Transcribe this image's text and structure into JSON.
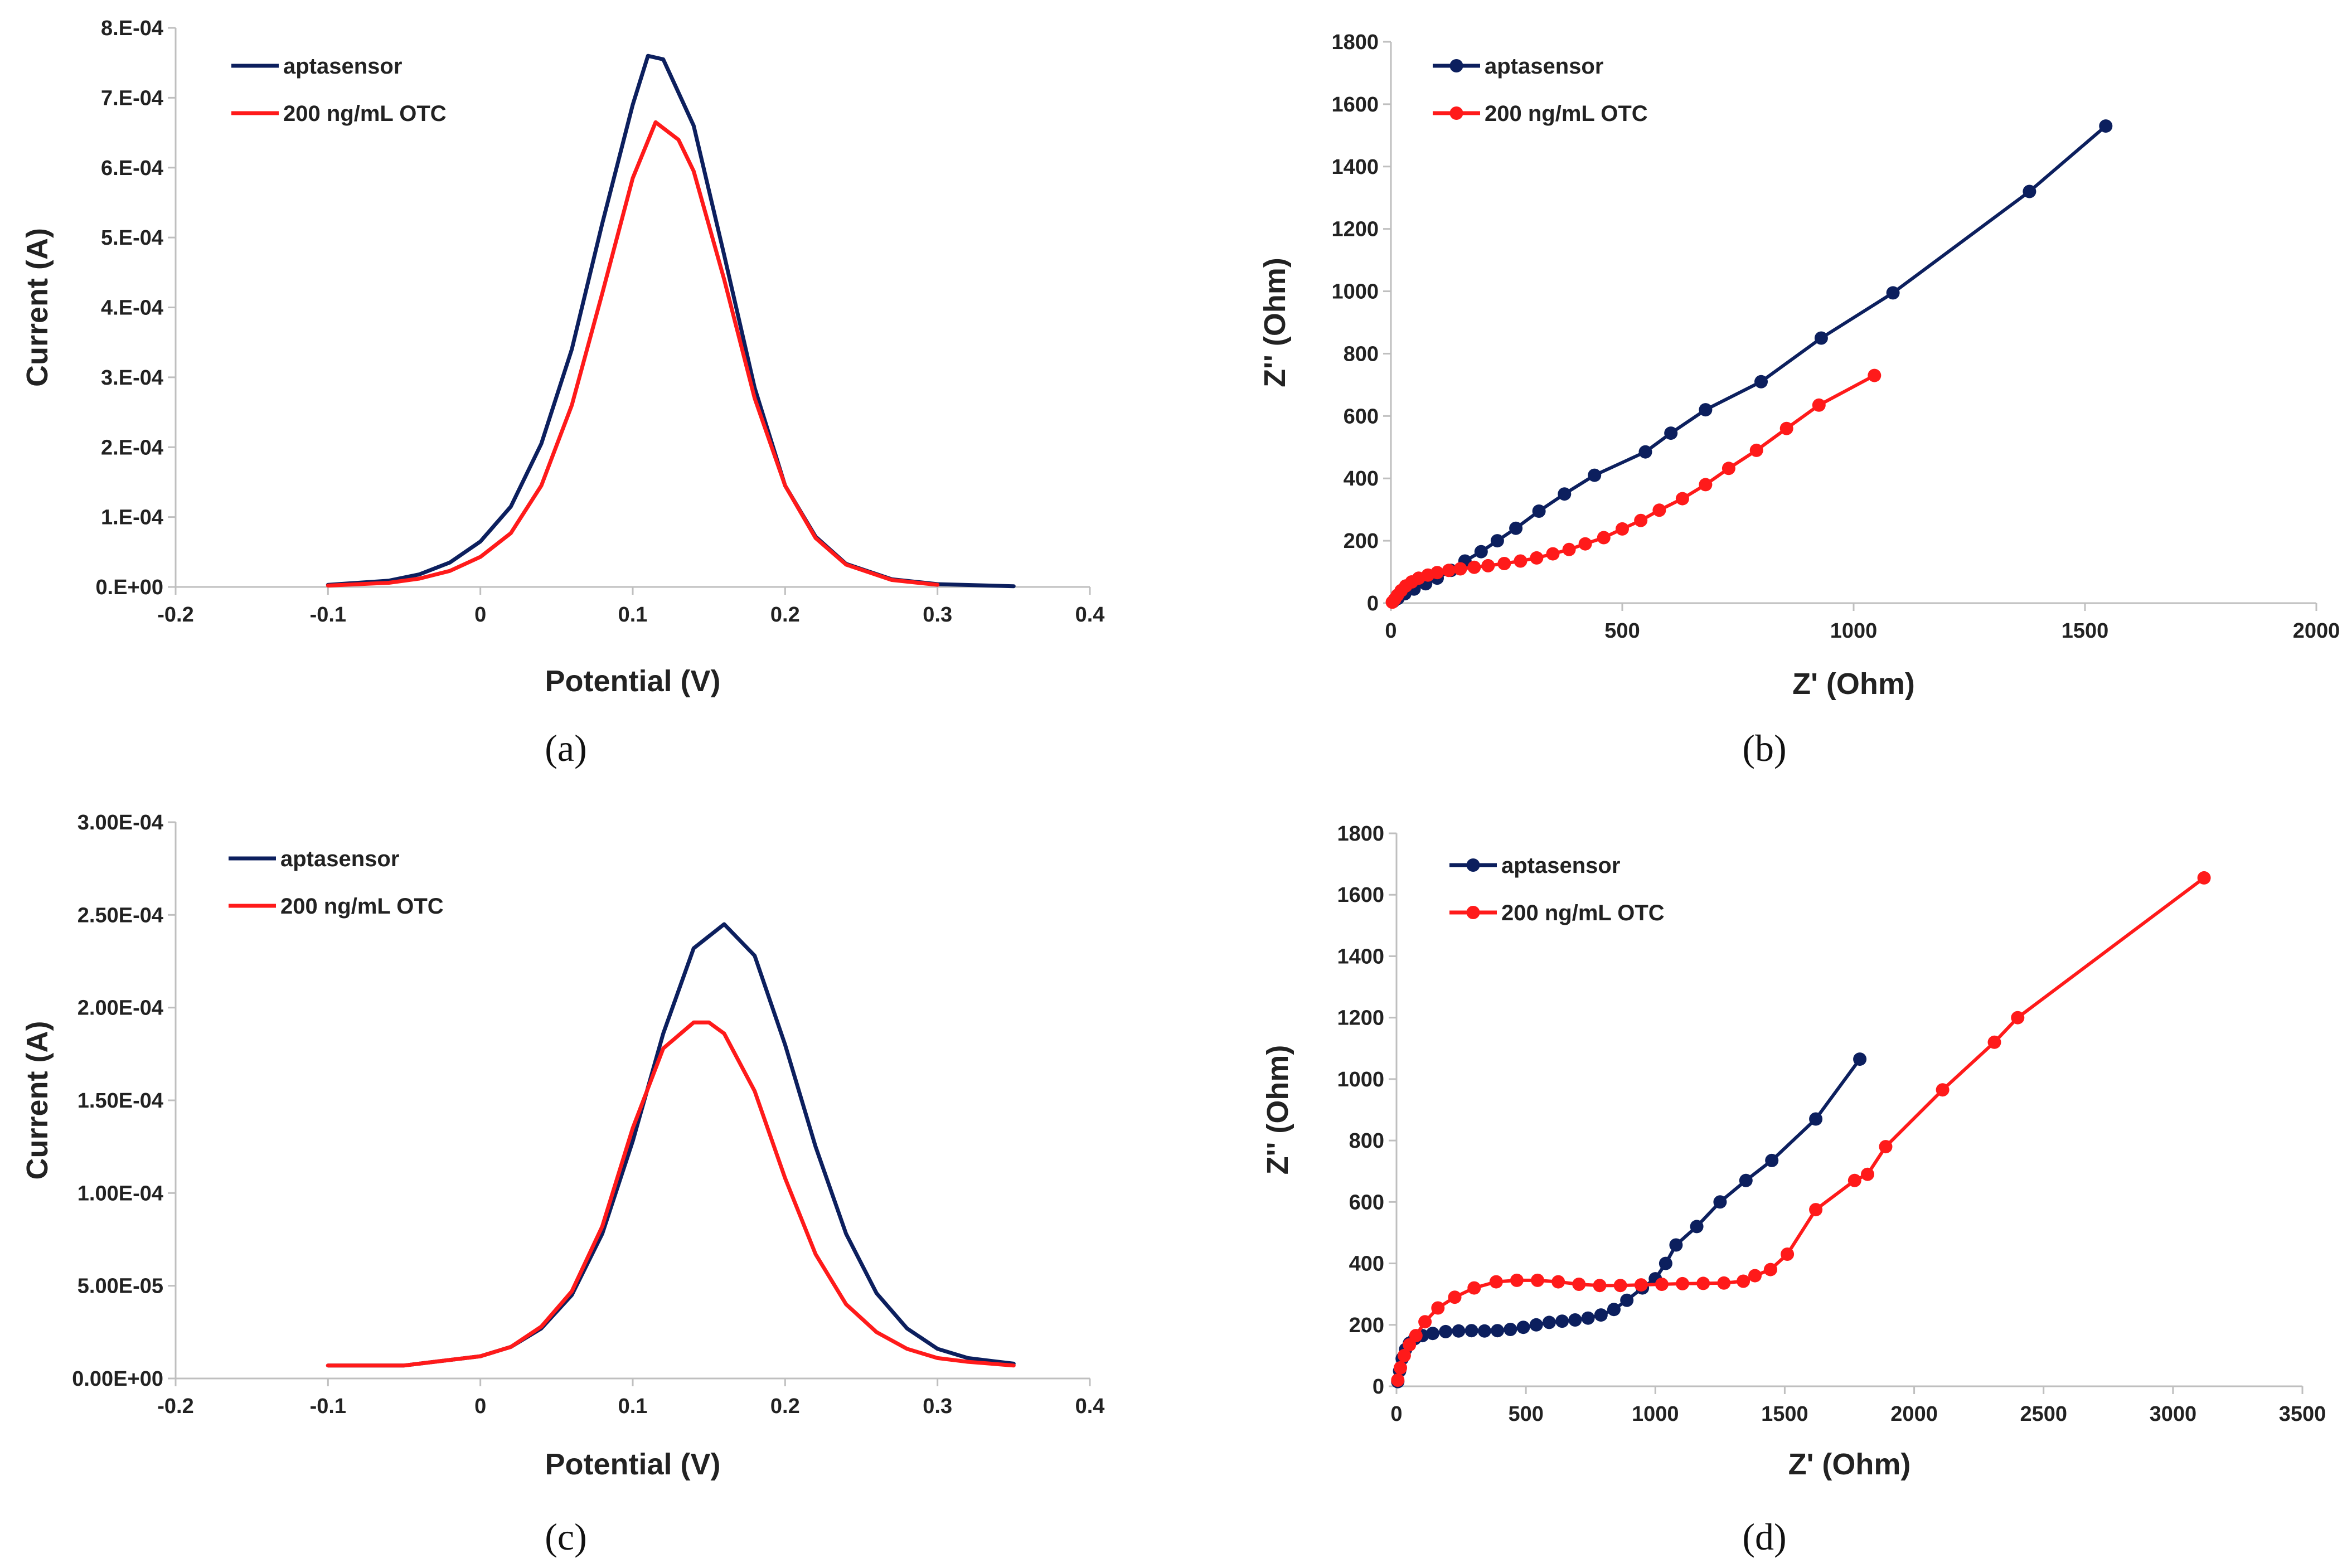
{
  "colors": {
    "series1": "#0c1f5e",
    "series2": "#ff1a1a"
  },
  "chart_data": [
    {
      "type": "line",
      "caption": "(a)",
      "xlabel": "Potential (V)",
      "ylabel": "Current (A)",
      "xlim": [
        -0.2,
        0.4
      ],
      "ylim": [
        0,
        0.0008
      ],
      "x_ticks": [
        -0.2,
        -0.1,
        0,
        0.1,
        0.2,
        0.3,
        0.4
      ],
      "x_tick_labels": [
        "-0.2",
        "-0.1",
        "0",
        "0.1",
        "0.2",
        "0.3",
        "0.4"
      ],
      "y_ticks": [
        0,
        0.0001,
        0.0002,
        0.0003,
        0.0004,
        0.0005,
        0.0006,
        0.0007,
        0.0008
      ],
      "y_tick_labels": [
        "0.E+00",
        "1.E-04",
        "2.E-04",
        "3.E-04",
        "4.E-04",
        "5.E-04",
        "6.E-04",
        "7.E-04",
        "8.E-04"
      ],
      "legend": [
        "aptasensor",
        "200 ng/mL OTC"
      ],
      "series": [
        {
          "name": "aptasensor",
          "markers": false,
          "x": [
            -0.1,
            -0.06,
            -0.04,
            -0.02,
            0,
            0.02,
            0.04,
            0.06,
            0.08,
            0.1,
            0.11,
            0.12,
            0.14,
            0.16,
            0.18,
            0.2,
            0.22,
            0.24,
            0.27,
            0.3,
            0.35
          ],
          "y": [
            3e-06,
            9e-06,
            1.8e-05,
            3.5e-05,
            6.5e-05,
            0.000115,
            0.000205,
            0.00034,
            0.00052,
            0.00069,
            0.00076,
            0.000755,
            0.00066,
            0.000475,
            0.000285,
            0.000145,
            7.2e-05,
            3.3e-05,
            1.1e-05,
            4e-06,
            1e-06
          ]
        },
        {
          "name": "200 ng/mL OTC",
          "markers": false,
          "x": [
            -0.1,
            -0.06,
            -0.04,
            -0.02,
            0,
            0.02,
            0.04,
            0.06,
            0.08,
            0.1,
            0.115,
            0.13,
            0.14,
            0.16,
            0.18,
            0.2,
            0.22,
            0.24,
            0.27,
            0.3
          ],
          "y": [
            2e-06,
            6e-06,
            1.2e-05,
            2.3e-05,
            4.3e-05,
            7.7e-05,
            0.000145,
            0.00026,
            0.00042,
            0.000585,
            0.000665,
            0.00064,
            0.000595,
            0.00044,
            0.00027,
            0.000145,
            7e-05,
            3.2e-05,
            1e-05,
            3e-06
          ]
        }
      ]
    },
    {
      "type": "scatter",
      "caption": "(b)",
      "xlabel": "Z' (Ohm)",
      "ylabel": "Z'' (Ohm)",
      "xlim": [
        0,
        2000
      ],
      "ylim": [
        0,
        1800
      ],
      "x_ticks": [
        0,
        500,
        1000,
        1500,
        2000
      ],
      "x_tick_labels": [
        "0",
        "500",
        "1000",
        "1500",
        "2000"
      ],
      "y_ticks": [
        0,
        200,
        400,
        600,
        800,
        1000,
        1200,
        1400,
        1600,
        1800
      ],
      "y_tick_labels": [
        "0",
        "200",
        "400",
        "600",
        "800",
        "1000",
        "1200",
        "1400",
        "1600",
        "1800"
      ],
      "legend": [
        "aptasensor",
        "200 ng/mL OTC"
      ],
      "series": [
        {
          "name": "aptasensor",
          "markers": true,
          "x": [
            5,
            15,
            30,
            50,
            75,
            100,
            130,
            160,
            195,
            230,
            270,
            320,
            375,
            440,
            550,
            605,
            680,
            800,
            930,
            1085,
            1380,
            1545
          ],
          "y": [
            5,
            15,
            30,
            45,
            62,
            80,
            105,
            135,
            165,
            200,
            240,
            295,
            350,
            410,
            485,
            545,
            620,
            710,
            850,
            995,
            1320,
            1530
          ]
        },
        {
          "name": "200 ng/mL OTC",
          "markers": true,
          "x": [
            3,
            8,
            14,
            22,
            32,
            45,
            60,
            80,
            100,
            125,
            150,
            180,
            210,
            245,
            280,
            315,
            350,
            385,
            420,
            460,
            500,
            540,
            580,
            630,
            680,
            730,
            790,
            855,
            925,
            1045
          ],
          "y": [
            3,
            12,
            25,
            40,
            55,
            68,
            80,
            90,
            98,
            105,
            110,
            115,
            120,
            127,
            135,
            145,
            158,
            172,
            190,
            210,
            238,
            265,
            298,
            335,
            380,
            432,
            490,
            560,
            635,
            730
          ]
        }
      ]
    },
    {
      "type": "line",
      "caption": "(c)",
      "xlabel": "Potential (V)",
      "ylabel": "Current (A)",
      "xlim": [
        -0.2,
        0.4
      ],
      "ylim": [
        0,
        0.0003
      ],
      "x_ticks": [
        -0.2,
        -0.1,
        0,
        0.1,
        0.2,
        0.3,
        0.4
      ],
      "x_tick_labels": [
        "-0.2",
        "-0.1",
        "0",
        "0.1",
        "0.2",
        "0.3",
        "0.4"
      ],
      "y_ticks": [
        0,
        5e-05,
        0.0001,
        0.00015,
        0.0002,
        0.00025,
        0.0003
      ],
      "y_tick_labels": [
        "0.00E+00",
        "5.00E-05",
        "1.00E-04",
        "1.50E-04",
        "2.00E-04",
        "2.50E-04",
        "3.00E-04"
      ],
      "legend": [
        "aptasensor",
        "200 ng/mL OTC"
      ],
      "series": [
        {
          "name": "aptasensor",
          "markers": false,
          "x": [
            -0.1,
            -0.05,
            0,
            0.02,
            0.04,
            0.06,
            0.08,
            0.1,
            0.12,
            0.14,
            0.16,
            0.18,
            0.2,
            0.22,
            0.24,
            0.26,
            0.28,
            0.3,
            0.32,
            0.35
          ],
          "y": [
            7e-06,
            7e-06,
            1.2e-05,
            1.7e-05,
            2.7e-05,
            4.5e-05,
            7.8e-05,
            0.000128,
            0.000186,
            0.000232,
            0.000245,
            0.000228,
            0.00018,
            0.000125,
            7.8e-05,
            4.6e-05,
            2.7e-05,
            1.6e-05,
            1.1e-05,
            8e-06
          ]
        },
        {
          "name": "200 ng/mL OTC",
          "markers": false,
          "x": [
            -0.1,
            -0.05,
            0,
            0.02,
            0.04,
            0.06,
            0.08,
            0.1,
            0.12,
            0.14,
            0.15,
            0.16,
            0.18,
            0.2,
            0.22,
            0.24,
            0.26,
            0.28,
            0.3,
            0.32,
            0.35
          ],
          "y": [
            7e-06,
            7e-06,
            1.2e-05,
            1.7e-05,
            2.8e-05,
            4.7e-05,
            8.2e-05,
            0.000135,
            0.000178,
            0.000192,
            0.000192,
            0.000186,
            0.000155,
            0.000108,
            6.7e-05,
            4e-05,
            2.5e-05,
            1.6e-05,
            1.1e-05,
            9e-06,
            7e-06
          ]
        }
      ]
    },
    {
      "type": "scatter",
      "caption": "(d)",
      "xlabel": "Z' (Ohm)",
      "ylabel": "Z'' (Ohm)",
      "xlim": [
        0,
        3500
      ],
      "ylim": [
        0,
        1800
      ],
      "x_ticks": [
        0,
        500,
        1000,
        1500,
        2000,
        2500,
        3000,
        3500
      ],
      "x_tick_labels": [
        "0",
        "500",
        "1000",
        "1500",
        "2000",
        "2500",
        "3000",
        "3500"
      ],
      "y_ticks": [
        0,
        200,
        400,
        600,
        800,
        1000,
        1200,
        1400,
        1600,
        1800
      ],
      "y_tick_labels": [
        "0",
        "200",
        "400",
        "600",
        "800",
        "1000",
        "1200",
        "1400",
        "1600",
        "1800"
      ],
      "legend": [
        "aptasensor",
        "200 ng/mL OTC"
      ],
      "series": [
        {
          "name": "aptasensor",
          "markers": true,
          "x": [
            5,
            12,
            22,
            35,
            50,
            70,
            100,
            140,
            190,
            240,
            290,
            340,
            390,
            440,
            490,
            540,
            590,
            640,
            690,
            740,
            790,
            840,
            890,
            950,
            1000,
            1040,
            1080,
            1160,
            1250,
            1350,
            1450,
            1620,
            1790
          ],
          "y": [
            15,
            50,
            90,
            120,
            140,
            155,
            165,
            172,
            178,
            180,
            181,
            180,
            181,
            185,
            192,
            200,
            208,
            212,
            216,
            222,
            232,
            250,
            280,
            320,
            350,
            400,
            460,
            520,
            600,
            670,
            735,
            870,
            1065
          ]
        },
        {
          "name": "200 ng/mL OTC",
          "markers": true,
          "x": [
            5,
            15,
            30,
            50,
            75,
            110,
            160,
            225,
            300,
            385,
            465,
            545,
            625,
            705,
            785,
            865,
            945,
            1025,
            1105,
            1185,
            1265,
            1340,
            1385,
            1445,
            1510,
            1620,
            1770,
            1820,
            1890,
            2110,
            2310,
            2400,
            3120
          ],
          "y": [
            20,
            60,
            100,
            135,
            165,
            210,
            255,
            290,
            320,
            340,
            345,
            345,
            340,
            332,
            328,
            328,
            330,
            332,
            334,
            335,
            336,
            342,
            360,
            380,
            430,
            575,
            670,
            690,
            780,
            965,
            1120,
            1200,
            1655
          ]
        }
      ]
    }
  ]
}
